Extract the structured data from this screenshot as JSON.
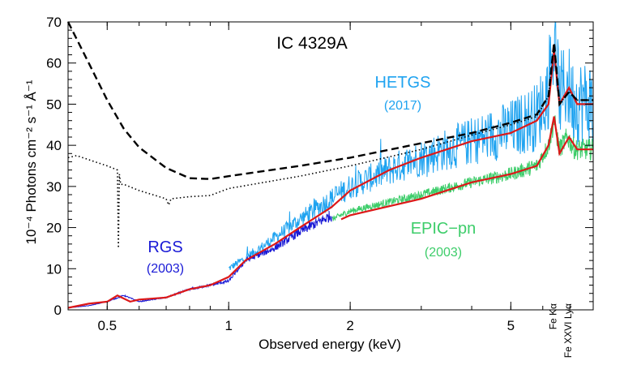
{
  "chart_data": {
    "type": "line",
    "title": "IC 4329A",
    "xlabel": "Observed energy (keV)",
    "ylabel": "10⁻⁴ Photons cm⁻² s⁻¹ Å⁻¹",
    "x_scale": "log",
    "xlim": [
      0.4,
      8.0
    ],
    "ylim": [
      0,
      70
    ],
    "x_ticks": [
      {
        "value": 0.5,
        "label": "0.5"
      },
      {
        "value": 1,
        "label": "1"
      },
      {
        "value": 2,
        "label": "2"
      },
      {
        "value": 5,
        "label": "5"
      }
    ],
    "y_ticks": [
      {
        "value": 0,
        "label": "0"
      },
      {
        "value": 10,
        "label": "10"
      },
      {
        "value": 20,
        "label": "20"
      },
      {
        "value": 30,
        "label": "30"
      },
      {
        "value": 40,
        "label": "40"
      },
      {
        "value": 50,
        "label": "50"
      },
      {
        "value": 60,
        "label": "60"
      },
      {
        "value": 70,
        "label": "70"
      }
    ],
    "annotations": [
      {
        "name": "hetgs",
        "label": "HETGS",
        "year": "(2017)",
        "color": "#1fa3f0"
      },
      {
        "name": "epic-pn",
        "label": "EPIC−pn",
        "year": "(2003)",
        "color": "#3dcd6a"
      },
      {
        "name": "rgs",
        "label": "RGS",
        "year": "(2003)",
        "color": "#1a1ad6"
      }
    ],
    "line_labels": [
      {
        "name": "fe-ka",
        "text": "Fe Kα",
        "x": 6.4
      },
      {
        "name": "fe-xxvi",
        "text": "Fe XXVI Lyα",
        "x": 6.97
      }
    ],
    "series": [
      {
        "id": "hetgs",
        "style": "noisy",
        "color": "#1fa3f0",
        "x_range": [
          1.0,
          8.0
        ],
        "points": [
          [
            1.0,
            10
          ],
          [
            1.2,
            15
          ],
          [
            1.5,
            22
          ],
          [
            2.0,
            30
          ],
          [
            2.5,
            34
          ],
          [
            3.0,
            37
          ],
          [
            4.0,
            41
          ],
          [
            5.0,
            44
          ],
          [
            5.8,
            47
          ],
          [
            6.2,
            54
          ],
          [
            6.4,
            66
          ],
          [
            6.6,
            52
          ],
          [
            6.9,
            55
          ],
          [
            7.1,
            51
          ],
          [
            8.0,
            50
          ]
        ]
      },
      {
        "id": "epic",
        "style": "noisy",
        "color": "#3dcd6a",
        "x_range": [
          1.8,
          8.0
        ],
        "points": [
          [
            1.8,
            22
          ],
          [
            2.0,
            24
          ],
          [
            3.0,
            28
          ],
          [
            4.0,
            31
          ],
          [
            5.0,
            33
          ],
          [
            5.8,
            35
          ],
          [
            6.2,
            40
          ],
          [
            6.4,
            46
          ],
          [
            6.6,
            39
          ],
          [
            6.9,
            42
          ],
          [
            7.2,
            39
          ],
          [
            8.0,
            39
          ]
        ]
      },
      {
        "id": "rgs",
        "style": "noisy",
        "color": "#1a1ad6",
        "x_range": [
          0.4,
          1.8
        ],
        "points": [
          [
            0.4,
            0.5
          ],
          [
            0.45,
            1
          ],
          [
            0.5,
            2
          ],
          [
            0.55,
            3.5
          ],
          [
            0.6,
            2
          ],
          [
            0.7,
            3
          ],
          [
            0.8,
            5
          ],
          [
            0.9,
            6
          ],
          [
            1.0,
            7
          ],
          [
            1.1,
            12
          ],
          [
            1.3,
            15
          ],
          [
            1.5,
            19
          ],
          [
            1.8,
            23
          ]
        ]
      },
      {
        "id": "model-hetgs",
        "style": "solid",
        "color": "#dd1818",
        "points": [
          [
            0.4,
            0.5
          ],
          [
            0.45,
            1.5
          ],
          [
            0.5,
            2
          ],
          [
            0.53,
            3.5
          ],
          [
            0.57,
            2
          ],
          [
            0.6,
            2.5
          ],
          [
            0.7,
            3
          ],
          [
            0.8,
            5
          ],
          [
            0.9,
            6
          ],
          [
            1.0,
            8
          ],
          [
            1.1,
            12
          ],
          [
            1.3,
            16
          ],
          [
            1.5,
            20
          ],
          [
            1.8,
            25
          ],
          [
            2.0,
            29
          ],
          [
            2.5,
            34
          ],
          [
            3.0,
            37
          ],
          [
            4.0,
            41
          ],
          [
            5.0,
            43
          ],
          [
            5.8,
            46
          ],
          [
            6.2,
            50
          ],
          [
            6.4,
            63
          ],
          [
            6.6,
            50
          ],
          [
            6.97,
            54
          ],
          [
            7.3,
            50
          ],
          [
            8.0,
            50
          ]
        ]
      },
      {
        "id": "model-epic",
        "style": "solid",
        "color": "#dd1818",
        "points": [
          [
            1.9,
            22
          ],
          [
            2.0,
            23
          ],
          [
            3.0,
            27
          ],
          [
            4.0,
            31
          ],
          [
            5.0,
            33
          ],
          [
            5.8,
            35
          ],
          [
            6.2,
            40
          ],
          [
            6.4,
            47
          ],
          [
            6.6,
            38
          ],
          [
            6.97,
            42
          ],
          [
            7.3,
            39
          ],
          [
            8.0,
            39
          ]
        ]
      },
      {
        "id": "intrinsic-dashed",
        "style": "dashed",
        "color": "#000000",
        "points": [
          [
            0.4,
            70
          ],
          [
            0.45,
            60
          ],
          [
            0.5,
            51
          ],
          [
            0.55,
            44
          ],
          [
            0.6,
            39.5
          ],
          [
            0.7,
            34.5
          ],
          [
            0.8,
            32
          ],
          [
            0.9,
            31.8
          ],
          [
            1.0,
            32.5
          ],
          [
            1.5,
            35
          ],
          [
            2.0,
            37
          ],
          [
            3.0,
            40.5
          ],
          [
            4.0,
            43
          ],
          [
            5.0,
            45.5
          ],
          [
            5.8,
            47.5
          ],
          [
            6.2,
            52
          ],
          [
            6.4,
            65
          ],
          [
            6.6,
            50
          ],
          [
            6.97,
            53
          ],
          [
            7.3,
            51
          ],
          [
            8.0,
            51
          ]
        ]
      },
      {
        "id": "absorbed-dotted",
        "style": "dotted",
        "color": "#000000",
        "points": [
          [
            0.4,
            37
          ],
          [
            0.42,
            37.5
          ],
          [
            0.45,
            36.5
          ],
          [
            0.5,
            35
          ],
          [
            0.53,
            34
          ],
          [
            0.533,
            15
          ],
          [
            0.536,
            33
          ],
          [
            0.54,
            30.5
          ],
          [
            0.55,
            30.5
          ],
          [
            0.6,
            29
          ],
          [
            0.7,
            27
          ],
          [
            0.71,
            25.5
          ],
          [
            0.72,
            27
          ],
          [
            0.8,
            27.5
          ],
          [
            0.9,
            27.8
          ],
          [
            1.0,
            29.5
          ],
          [
            1.5,
            32.5
          ],
          [
            2.0,
            35
          ],
          [
            3.0,
            39
          ],
          [
            4.0,
            42.5
          ],
          [
            5.0,
            45
          ],
          [
            5.8,
            47
          ],
          [
            6.2,
            52
          ],
          [
            6.4,
            64
          ],
          [
            6.6,
            50
          ],
          [
            6.97,
            53
          ],
          [
            7.3,
            51
          ],
          [
            8.0,
            51
          ]
        ]
      }
    ]
  }
}
